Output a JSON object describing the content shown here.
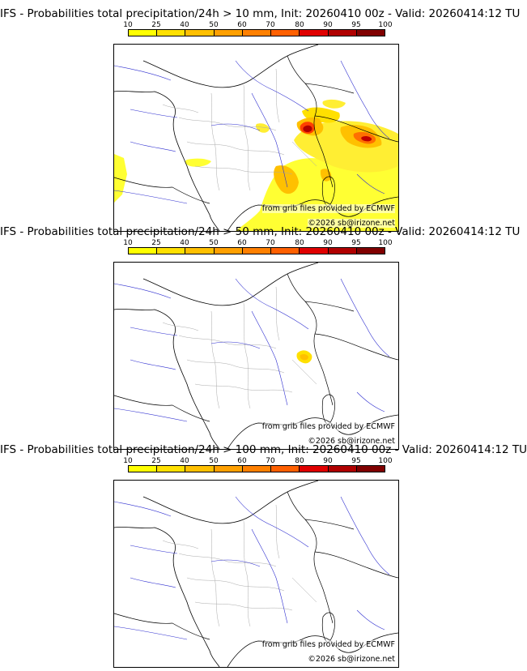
{
  "colorbar": {
    "ticks": [
      "10",
      "25",
      "40",
      "50",
      "60",
      "70",
      "80",
      "90",
      "95",
      "100"
    ],
    "colors": [
      "#ffff00",
      "#ffe000",
      "#ffc000",
      "#ffa000",
      "#ff8000",
      "#ff6000",
      "#e00000",
      "#b00000",
      "#800000"
    ]
  },
  "maps": [
    {
      "title": "IFS - Probabilities total precipitation/24h > 10 mm, Init: 20260410 00z - Valid: 20260414:12 TU",
      "source": "from grib files provided by ECMWF",
      "copyright": "©2026 sb@irizone.net"
    },
    {
      "title": "IFS - Probabilities total precipitation/24h > 50 mm, Init: 20260410 00z - Valid: 20260414:12 TU",
      "source": "from grib files provided by ECMWF",
      "copyright": "©2026 sb@irizone.net"
    },
    {
      "title": "IFS - Probabilities total precipitation/24h > 100 mm, Init: 20260410 00z - Valid: 20260414:12 TU",
      "source": "from grib files provided by ECMWF",
      "copyright": "©2026 sb@irizone.net"
    }
  ]
}
